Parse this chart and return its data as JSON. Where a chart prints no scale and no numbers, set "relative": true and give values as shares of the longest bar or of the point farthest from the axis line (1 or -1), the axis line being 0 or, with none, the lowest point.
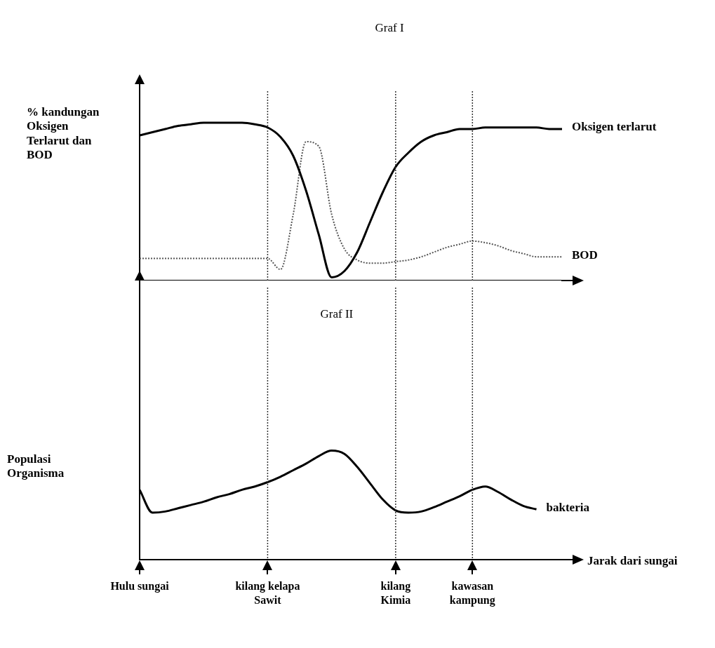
{
  "chart_data": [
    {
      "type": "line",
      "title": "Graf I",
      "ylabel": "% kandungan\nOksigen\nTerlarut dan\nBOD",
      "relative": true,
      "tick_labels": false,
      "grid": false,
      "legend": false,
      "marker": "none",
      "categories": [
        "Hulu sungai",
        null,
        null,
        null,
        null,
        null,
        null,
        null,
        null,
        null,
        "kilang kelapa\nSawit",
        null,
        null,
        null,
        null,
        null,
        null,
        null,
        null,
        null,
        "kilang\nKimia",
        null,
        null,
        null,
        null,
        null,
        "kawasan\nkampung",
        null,
        null,
        null,
        null,
        null,
        null,
        null
      ],
      "ref_lines": [
        {
          "axis": "x",
          "value": "kilang kelapa\nSawit"
        },
        {
          "axis": "x",
          "value": "kilang\nKimia"
        },
        {
          "axis": "x",
          "value": "kawasan\nkampung"
        }
      ],
      "series": [
        {
          "name": "Oksigen terlarut",
          "color": "#000000",
          "line_style": "solid",
          "values": [
            0.92,
            0.94,
            0.96,
            0.98,
            0.99,
            1.0,
            1.0,
            1.0,
            1.0,
            0.99,
            0.97,
            0.91,
            0.79,
            0.57,
            0.29,
            0.02,
            0.06,
            0.18,
            0.37,
            0.56,
            0.72,
            0.81,
            0.88,
            0.92,
            0.94,
            0.96,
            0.96,
            0.97,
            0.97,
            0.97,
            0.97,
            0.97,
            0.96,
            0.96
          ]
        },
        {
          "name": "BOD",
          "color": "#555555",
          "line_style": "dotted",
          "values": [
            0.14,
            0.14,
            0.14,
            0.14,
            0.14,
            0.14,
            0.14,
            0.14,
            0.14,
            0.14,
            0.14,
            0.07,
            0.42,
            0.88,
            0.85,
            0.42,
            0.2,
            0.13,
            0.11,
            0.11,
            0.12,
            0.13,
            0.15,
            0.18,
            0.21,
            0.23,
            0.25,
            0.24,
            0.22,
            0.19,
            0.17,
            0.15,
            0.15,
            0.15
          ]
        }
      ]
    },
    {
      "type": "line",
      "title": "Graf II",
      "ylabel": "Populasi\nOrganisma",
      "xlabel": "Jarak dari sungai",
      "relative": true,
      "tick_labels": "x",
      "grid": false,
      "legend": false,
      "marker": "none",
      "categories": [
        "Hulu sungai",
        null,
        null,
        null,
        null,
        null,
        null,
        null,
        null,
        null,
        "kilang kelapa\nSawit",
        null,
        null,
        null,
        null,
        null,
        null,
        null,
        null,
        null,
        "kilang\nKimia",
        null,
        null,
        null,
        null,
        null,
        "kawasan\nkampung",
        null,
        null,
        null,
        null,
        null,
        null,
        null
      ],
      "ref_lines": [
        {
          "axis": "x",
          "value": "kilang kelapa\nSawit"
        },
        {
          "axis": "x",
          "value": "kilang\nKimia"
        },
        {
          "axis": "x",
          "value": "kawasan\nkampung"
        }
      ],
      "series": [
        {
          "name": "bakteria",
          "color": "#000000",
          "line_style": "solid",
          "values": [
            0.64,
            0.43,
            0.44,
            0.47,
            0.5,
            0.53,
            0.57,
            0.6,
            0.64,
            0.67,
            0.71,
            0.76,
            0.82,
            0.88,
            0.95,
            1.0,
            0.97,
            0.85,
            0.7,
            0.55,
            0.45,
            0.43,
            0.44,
            0.48,
            0.53,
            0.58,
            0.64,
            0.67,
            0.62,
            0.55,
            0.49,
            0.46,
            null,
            null
          ]
        }
      ]
    }
  ]
}
